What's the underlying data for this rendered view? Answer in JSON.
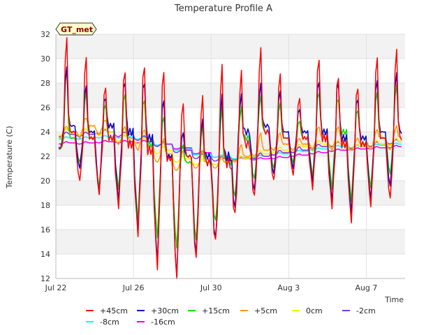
{
  "chart_data": {
    "type": "line",
    "title": "Temperature Profile A",
    "xlabel": "Time",
    "ylabel": "Temperature (C)",
    "badge": "GT_met",
    "xlim": [
      "2023-07-22",
      "2023-08-09"
    ],
    "ylim": [
      12,
      32
    ],
    "yticks": [
      12,
      14,
      16,
      18,
      20,
      22,
      24,
      26,
      28,
      30,
      32
    ],
    "xticks": [
      {
        "date": "2023-07-22",
        "label": "Jul 22"
      },
      {
        "date": "2023-07-26",
        "label": "Jul 26"
      },
      {
        "date": "2023-07-30",
        "label": "Jul 30"
      },
      {
        "date": "2023-08-03",
        "label": "Aug 3"
      },
      {
        "date": "2023-08-07",
        "label": "Aug 7"
      }
    ],
    "grid": true,
    "legend_position": "bottom",
    "daily_dates": [
      "2023-07-22",
      "2023-07-23",
      "2023-07-24",
      "2023-07-25",
      "2023-07-26",
      "2023-07-27",
      "2023-07-28",
      "2023-07-29",
      "2023-07-30",
      "2023-07-31",
      "2023-08-01",
      "2023-08-02",
      "2023-08-03",
      "2023-08-04",
      "2023-08-05",
      "2023-08-06",
      "2023-08-07",
      "2023-08-08"
    ],
    "series": [
      {
        "name": "+45cm",
        "color": "#ff0000",
        "base": [
          24.0,
          23.5,
          23.5,
          23.0,
          22.5,
          21.8,
          22.0,
          21.5,
          21.5,
          23.0,
          24.0,
          23.5,
          23.5,
          23.5,
          23.0,
          23.0,
          23.5,
          23.5
        ],
        "peak": [
          32.0,
          30.5,
          28.0,
          29.5,
          30.0,
          29.5,
          26.5,
          27.0,
          29.5,
          29.0,
          31.0,
          29.0,
          27.0,
          30.5,
          29.0,
          28.0,
          30.5,
          31.0
        ],
        "trough": [
          22.5,
          20.0,
          19.0,
          18.0,
          15.8,
          13.0,
          12.0,
          13.5,
          14.8,
          17.0,
          18.5,
          20.0,
          20.5,
          19.5,
          18.0,
          16.8,
          18.0,
          18.5
        ]
      },
      {
        "name": "+30cm",
        "color": "#0000cc",
        "base": [
          24.5,
          24.0,
          24.5,
          24.0,
          23.5,
          22.0,
          22.0,
          22.0,
          22.0,
          24.0,
          24.5,
          24.0,
          24.0,
          24.0,
          23.5,
          23.5,
          24.0,
          24.0
        ],
        "peak": [
          29.5,
          28.0,
          27.0,
          28.5,
          28.5,
          27.0,
          24.0,
          25.0,
          27.0,
          27.0,
          28.0,
          27.5,
          26.0,
          28.5,
          28.5,
          27.0,
          28.5,
          29.0
        ],
        "trough": [
          22.5,
          21.0,
          19.0,
          18.5,
          16.0,
          13.5,
          12.2,
          13.8,
          15.0,
          17.5,
          19.0,
          20.5,
          21.0,
          20.0,
          18.5,
          17.5,
          18.5,
          19.5
        ]
      },
      {
        "name": "+15cm",
        "color": "#00dd00",
        "base": [
          23.5,
          23.5,
          23.5,
          23.0,
          23.0,
          22.0,
          21.5,
          21.5,
          21.5,
          23.5,
          24.0,
          23.5,
          23.5,
          24.0,
          24.0,
          23.5,
          23.5,
          24.0
        ],
        "peak": [
          29.5,
          27.5,
          26.5,
          27.5,
          27.0,
          25.5,
          23.0,
          24.5,
          26.0,
          26.0,
          27.0,
          26.5,
          25.0,
          27.5,
          27.0,
          26.0,
          27.5,
          28.0
        ],
        "trough": [
          22.5,
          21.5,
          19.5,
          19.5,
          17.0,
          15.5,
          14.5,
          15.0,
          16.5,
          18.5,
          20.0,
          21.0,
          21.5,
          20.5,
          19.5,
          18.5,
          19.5,
          20.5
        ]
      },
      {
        "name": "+5cm",
        "color": "#ff9900",
        "base": [
          24.0,
          24.5,
          24.5,
          23.5,
          23.5,
          22.2,
          21.5,
          21.5,
          21.5,
          22.0,
          22.5,
          23.0,
          23.0,
          23.5,
          23.5,
          23.0,
          23.5,
          23.5
        ],
        "peak": [
          24.5,
          25.2,
          25.0,
          24.5,
          24.2,
          23.5,
          22.5,
          22.5,
          22.0,
          23.0,
          24.0,
          24.0,
          23.5,
          24.5,
          24.5,
          23.5,
          24.2,
          24.5
        ],
        "trough": [
          23.5,
          23.5,
          23.8,
          23.0,
          22.5,
          21.5,
          20.8,
          21.0,
          21.0,
          21.5,
          22.0,
          22.5,
          22.5,
          22.5,
          22.5,
          22.5,
          22.5,
          22.5
        ]
      },
      {
        "name": "0cm",
        "color": "#ffee00",
        "base": [
          24.0,
          24.0,
          24.0,
          23.5,
          23.3,
          22.5,
          21.8,
          21.5,
          21.5,
          21.8,
          22.2,
          22.5,
          22.8,
          23.0,
          23.0,
          22.8,
          23.0,
          23.2
        ],
        "peak": [
          24.3,
          24.3,
          24.3,
          23.8,
          23.5,
          22.8,
          22.0,
          21.8,
          21.8,
          22.0,
          22.5,
          22.8,
          23.0,
          23.3,
          23.3,
          23.0,
          23.3,
          23.5
        ],
        "trough": [
          23.7,
          23.7,
          23.7,
          23.2,
          23.0,
          22.2,
          21.5,
          21.3,
          21.3,
          21.6,
          22.0,
          22.3,
          22.5,
          22.7,
          22.7,
          22.5,
          22.7,
          22.9
        ]
      },
      {
        "name": "-2cm",
        "color": "#8833dd",
        "base": [
          23.8,
          23.8,
          24.0,
          23.8,
          23.5,
          23.0,
          22.5,
          22.0,
          21.8,
          21.8,
          22.0,
          22.3,
          22.5,
          22.8,
          23.0,
          22.8,
          23.0,
          23.2
        ],
        "peak": [
          24.0,
          24.0,
          24.2,
          24.0,
          23.7,
          23.2,
          22.7,
          22.2,
          22.0,
          22.0,
          22.3,
          22.5,
          22.8,
          23.0,
          23.2,
          23.0,
          23.2,
          23.4
        ],
        "trough": [
          23.6,
          23.6,
          23.8,
          23.6,
          23.3,
          22.8,
          22.3,
          21.8,
          21.6,
          21.6,
          21.8,
          22.1,
          22.3,
          22.6,
          22.8,
          22.6,
          22.8,
          23.0
        ]
      },
      {
        "name": "-8cm",
        "color": "#00ffff",
        "base": [
          23.5,
          23.5,
          23.6,
          23.6,
          23.5,
          23.0,
          22.6,
          22.2,
          22.0,
          21.9,
          22.0,
          22.2,
          22.4,
          22.6,
          22.8,
          22.8,
          22.9,
          23.0
        ],
        "peak": [
          23.6,
          23.6,
          23.7,
          23.7,
          23.6,
          23.1,
          22.7,
          22.3,
          22.1,
          22.0,
          22.1,
          22.3,
          22.5,
          22.7,
          22.9,
          22.9,
          23.0,
          23.1
        ],
        "trough": [
          23.4,
          23.4,
          23.5,
          23.5,
          23.4,
          22.9,
          22.5,
          22.1,
          21.9,
          21.8,
          21.9,
          22.1,
          22.3,
          22.5,
          22.7,
          22.7,
          22.8,
          22.9
        ]
      },
      {
        "name": "-16cm",
        "color": "#ee00ee",
        "base": [
          23.1,
          23.1,
          23.2,
          23.2,
          23.2,
          23.0,
          22.7,
          22.3,
          22.0,
          21.8,
          21.8,
          21.9,
          22.1,
          22.3,
          22.5,
          22.6,
          22.7,
          22.8
        ],
        "peak": [
          23.2,
          23.2,
          23.3,
          23.3,
          23.3,
          23.1,
          22.8,
          22.4,
          22.1,
          21.9,
          21.9,
          22.0,
          22.2,
          22.4,
          22.6,
          22.7,
          22.8,
          22.9
        ],
        "trough": [
          23.0,
          23.0,
          23.1,
          23.1,
          23.1,
          22.9,
          22.6,
          22.2,
          21.9,
          21.7,
          21.7,
          21.8,
          22.0,
          22.2,
          22.4,
          22.5,
          22.6,
          22.7
        ]
      }
    ]
  }
}
